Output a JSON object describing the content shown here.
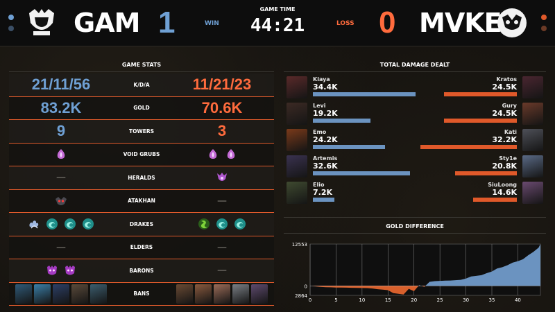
{
  "header": {
    "left_team": {
      "name": "GAM",
      "score": "1",
      "result": "WIN",
      "color": "#6fa0d4"
    },
    "right_team": {
      "name": "MVKE",
      "score": "0",
      "result": "LOSS",
      "color": "#ff6b3d"
    },
    "game_time_label": "GAME TIME",
    "game_time": "44:21"
  },
  "stats": {
    "title": "GAME STATS",
    "rows": [
      {
        "label": "K/D/A",
        "left": "21/11/56",
        "right": "11/21/23"
      },
      {
        "label": "GOLD",
        "left": "83.2K",
        "right": "70.6K"
      },
      {
        "label": "TOWERS",
        "left": "9",
        "right": "3"
      },
      {
        "label": "VOID GRUBS",
        "left_icons": [
          "void-grub-icon"
        ],
        "right_icons": [
          "void-grub-icon",
          "void-grub-icon"
        ]
      },
      {
        "label": "HERALDS",
        "left_icons": [],
        "right_icons": [
          "herald-icon"
        ]
      },
      {
        "label": "ATAKHAN",
        "left_icons": [
          "atakhan-icon"
        ],
        "right_icons": []
      },
      {
        "label": "DRAKES",
        "left_icons": [
          "cloud-drake-icon",
          "ocean-drake-icon",
          "ocean-drake-icon",
          "ocean-drake-icon"
        ],
        "right_icons": [
          "chemtech-drake-icon",
          "ocean-drake-icon",
          "ocean-drake-icon"
        ]
      },
      {
        "label": "ELDERS",
        "left_icons": [],
        "right_icons": []
      },
      {
        "label": "BARONS",
        "left_icons": [
          "baron-icon",
          "baron-icon"
        ],
        "right_icons": []
      },
      {
        "label": "BANS",
        "left_icons": [
          "ban-champion",
          "ban-champion",
          "ban-champion",
          "ban-champion",
          "ban-champion"
        ],
        "right_icons": [
          "ban-champion",
          "ban-champion",
          "ban-champion",
          "ban-champion",
          "ban-champion"
        ]
      }
    ]
  },
  "damage": {
    "title": "TOTAL DAMAGE DEALT",
    "max_value": 34.4,
    "players": [
      {
        "left_name": "Kiaya",
        "left_damage": "34.4K",
        "left_value": 34.4,
        "right_name": "Kratos",
        "right_damage": "24.5K",
        "right_value": 24.5
      },
      {
        "left_name": "Levi",
        "left_damage": "19.2K",
        "left_value": 19.2,
        "right_name": "Gury",
        "right_damage": "24.5K",
        "right_value": 24.5
      },
      {
        "left_name": "Emo",
        "left_damage": "24.2K",
        "left_value": 24.2,
        "right_name": "Kati",
        "right_damage": "32.2K",
        "right_value": 32.2
      },
      {
        "left_name": "Artemis",
        "left_damage": "32.6K",
        "left_value": 32.6,
        "right_name": "Sty1e",
        "right_damage": "20.8K",
        "right_value": 20.8
      },
      {
        "left_name": "Elio",
        "left_damage": "7.2K",
        "left_value": 7.2,
        "right_name": "SiuLoong",
        "right_damage": "14.6K",
        "right_value": 14.6
      }
    ]
  },
  "gold_difference": {
    "title": "GOLD DIFFERENCE",
    "y_max_label": "12553",
    "y_zero_label": "0",
    "y_min_label": "2864",
    "x_ticks": [
      "0",
      "5",
      "10",
      "15",
      "20",
      "25",
      "30",
      "35",
      "40"
    ]
  },
  "chart_data": {
    "type": "area",
    "title": "GOLD DIFFERENCE",
    "xlabel": "",
    "ylabel": "",
    "xlim": [
      0,
      44.35
    ],
    "ylim": [
      -2864,
      12553
    ],
    "x_ticks": [
      0,
      5,
      10,
      15,
      20,
      25,
      30,
      35,
      40
    ],
    "positive_color": "#6b93c0",
    "negative_color": "#d8602c",
    "series": [
      {
        "x": [
          0,
          1,
          2,
          3,
          4,
          5,
          6,
          7,
          8,
          9,
          10,
          11,
          12,
          13,
          14,
          15,
          16,
          17,
          18,
          19,
          20,
          21,
          22,
          23,
          24,
          25,
          26,
          27,
          28,
          29,
          30,
          31,
          32,
          33,
          34,
          35,
          36,
          37,
          38,
          39,
          40,
          41,
          42,
          43,
          44,
          44.35
        ],
        "y": [
          0,
          -150,
          -300,
          -400,
          -450,
          -500,
          -520,
          -560,
          -600,
          -620,
          -650,
          -680,
          -800,
          -1000,
          -1150,
          -1300,
          -2200,
          -2400,
          -2600,
          -900,
          -1600,
          200,
          -300,
          1200,
          1400,
          1500,
          1550,
          1600,
          1700,
          1800,
          2200,
          2800,
          3000,
          3200,
          3800,
          4300,
          5200,
          5600,
          6200,
          7000,
          7400,
          8000,
          9200,
          10200,
          11500,
          12553
        ]
      }
    ]
  },
  "colors": {
    "blue": "#6fa0d4",
    "orange": "#ff6b3d",
    "bar_blue": "#6b93c0",
    "bar_orange": "#e0592a"
  }
}
